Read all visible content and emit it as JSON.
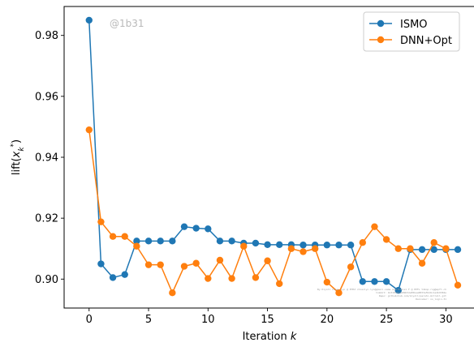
{
  "chart_data": {
    "type": "line",
    "xlabel_prefix": "Iteration",
    "xlabel_var": "k",
    "ylabel": "lift(x_k^*)",
    "xlim": [
      -2.1,
      32.5
    ],
    "ylim": [
      0.8905,
      0.9895
    ],
    "xticks": [
      0,
      5,
      10,
      15,
      20,
      25,
      30
    ],
    "yticks": [
      0.9,
      0.92,
      0.94,
      0.96,
      0.98
    ],
    "ytick_labels": [
      "0.90",
      "0.92",
      "0.94",
      "0.96",
      "0.98"
    ],
    "grid": false,
    "legend_position": "top-right",
    "x": [
      0,
      1,
      2,
      3,
      4,
      5,
      6,
      7,
      8,
      9,
      10,
      11,
      12,
      13,
      14,
      15,
      16,
      17,
      18,
      19,
      20,
      21,
      22,
      23,
      24,
      25,
      26,
      27,
      28,
      29,
      30,
      31
    ],
    "series": [
      {
        "name": "ISMO",
        "color": "#1f77b4",
        "values": [
          0.985,
          0.905,
          0.9005,
          0.9015,
          0.9125,
          0.9125,
          0.9125,
          0.9125,
          0.9172,
          0.9167,
          0.9165,
          0.9125,
          0.9125,
          0.9118,
          0.9118,
          0.9113,
          0.9113,
          0.9113,
          0.9112,
          0.9112,
          0.9112,
          0.9112,
          0.9112,
          0.8992,
          0.8992,
          0.8992,
          0.8963,
          0.9097,
          0.9097,
          0.9097,
          0.9097,
          0.9097
        ]
      },
      {
        "name": "DNN+Opt",
        "color": "#ff7f0e",
        "values": [
          0.949,
          0.9188,
          0.914,
          0.914,
          0.9108,
          0.9047,
          0.9047,
          0.8955,
          0.9042,
          0.9052,
          0.9002,
          0.9062,
          0.9002,
          0.9108,
          0.9005,
          0.906,
          0.8985,
          0.91,
          0.909,
          0.91,
          0.899,
          0.8955,
          0.904,
          0.912,
          0.9172,
          0.913,
          0.91,
          0.91,
          0.9052,
          0.912,
          0.91,
          0.898
        ]
      }
    ],
    "watermark": "@1b31",
    "credit_lines": [
      "By Kiyoll Chien Lyn @ ETHZ chienlyn.lyn@gmail.name and Daniel F @ EPFL tdmop.rog@epfl.ch",
      "Commit: 1b31874d3e89b5de85bea8833a5916c1a2b9384e",
      "Repo: github/hub.com/kiyoll/pareto-mitrall.git",
      "Rainsmar: no_login.31"
    ]
  }
}
